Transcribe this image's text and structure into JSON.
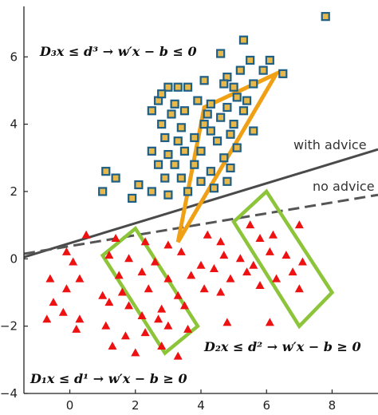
{
  "chart_data": {
    "type": "scatter",
    "title": "",
    "xlabel": "",
    "ylabel": "",
    "xlim": [
      -1.4,
      9.4
    ],
    "ylim": [
      -4,
      7.5
    ],
    "xticks": [
      0,
      2,
      4,
      6,
      8
    ],
    "yticks": [
      -4,
      -2,
      0,
      2,
      4,
      6
    ],
    "grid": false,
    "colors": {
      "squares_fill": "#e8b84a",
      "squares_edge": "#1d5f86",
      "triangles": "#ee1111",
      "with_advice_line": "#4a4a4a",
      "no_advice_line": "#555555",
      "knowledge_region_triangle": "#f0a014",
      "knowledge_region_boxes": "#8cc43a"
    },
    "series": [
      {
        "marker": "square",
        "points": [
          [
            7.8,
            7.2
          ],
          [
            5.3,
            6.5
          ],
          [
            4.6,
            6.1
          ],
          [
            5.9,
            5.6
          ],
          [
            6.1,
            5.9
          ],
          [
            6.5,
            5.5
          ],
          [
            5.5,
            5.9
          ],
          [
            5.2,
            5.6
          ],
          [
            4.8,
            5.4
          ],
          [
            5.6,
            5.2
          ],
          [
            5.0,
            5.1
          ],
          [
            4.7,
            5.2
          ],
          [
            3.0,
            5.1
          ],
          [
            3.3,
            5.1
          ],
          [
            3.6,
            5.1
          ],
          [
            3.2,
            4.6
          ],
          [
            2.7,
            4.7
          ],
          [
            3.9,
            4.7
          ],
          [
            4.3,
            4.6
          ],
          [
            5.1,
            4.8
          ],
          [
            5.4,
            4.7
          ],
          [
            4.2,
            4.3
          ],
          [
            4.8,
            4.5
          ],
          [
            2.5,
            4.4
          ],
          [
            3.1,
            4.3
          ],
          [
            3.5,
            4.4
          ],
          [
            4.1,
            4.0
          ],
          [
            4.6,
            4.2
          ],
          [
            5.0,
            4.0
          ],
          [
            5.3,
            4.4
          ],
          [
            2.8,
            4.0
          ],
          [
            3.4,
            3.9
          ],
          [
            4.3,
            3.8
          ],
          [
            4.9,
            3.7
          ],
          [
            5.6,
            3.8
          ],
          [
            2.9,
            3.6
          ],
          [
            3.3,
            3.5
          ],
          [
            3.8,
            3.6
          ],
          [
            4.5,
            3.5
          ],
          [
            5.1,
            3.3
          ],
          [
            2.5,
            3.2
          ],
          [
            3.0,
            3.1
          ],
          [
            3.5,
            3.2
          ],
          [
            4.0,
            3.2
          ],
          [
            4.7,
            3.0
          ],
          [
            2.7,
            2.8
          ],
          [
            3.2,
            2.8
          ],
          [
            3.8,
            2.8
          ],
          [
            4.3,
            2.6
          ],
          [
            4.9,
            2.7
          ],
          [
            2.9,
            2.4
          ],
          [
            3.4,
            2.4
          ],
          [
            4.0,
            2.3
          ],
          [
            1.1,
            2.6
          ],
          [
            1.4,
            2.4
          ],
          [
            2.1,
            2.2
          ],
          [
            1.9,
            1.8
          ],
          [
            1.0,
            2.0
          ],
          [
            2.5,
            2.0
          ],
          [
            3.0,
            1.9
          ],
          [
            4.4,
            2.1
          ],
          [
            4.8,
            2.3
          ],
          [
            3.6,
            2.0
          ],
          [
            2.8,
            4.9
          ],
          [
            4.1,
            5.3
          ]
        ]
      },
      {
        "marker": "triangle",
        "points": [
          [
            0.5,
            0.7
          ],
          [
            1.4,
            0.6
          ],
          [
            2.3,
            0.5
          ],
          [
            3.0,
            0.4
          ],
          [
            4.2,
            0.7
          ],
          [
            4.6,
            0.5
          ],
          [
            5.8,
            0.6
          ],
          [
            6.2,
            0.7
          ],
          [
            7.0,
            1.0
          ],
          [
            -0.1,
            0.2
          ],
          [
            0.1,
            -0.1
          ],
          [
            1.2,
            0.1
          ],
          [
            1.8,
            0.0
          ],
          [
            2.6,
            -0.1
          ],
          [
            3.4,
            0.2
          ],
          [
            4.0,
            -0.2
          ],
          [
            4.7,
            0.1
          ],
          [
            5.2,
            0.0
          ],
          [
            5.6,
            -0.2
          ],
          [
            6.1,
            0.2
          ],
          [
            6.6,
            0.1
          ],
          [
            7.1,
            -0.1
          ],
          [
            0.3,
            -0.6
          ],
          [
            1.5,
            -0.5
          ],
          [
            2.2,
            -0.4
          ],
          [
            3.0,
            -0.6
          ],
          [
            3.7,
            -0.5
          ],
          [
            4.4,
            -0.3
          ],
          [
            4.9,
            -0.6
          ],
          [
            5.4,
            -0.4
          ],
          [
            6.3,
            -0.6
          ],
          [
            6.8,
            -0.4
          ],
          [
            -0.6,
            -0.6
          ],
          [
            -0.1,
            -0.9
          ],
          [
            1.0,
            -1.1
          ],
          [
            1.6,
            -1.0
          ],
          [
            2.4,
            -0.9
          ],
          [
            3.3,
            -1.1
          ],
          [
            4.1,
            -0.9
          ],
          [
            4.6,
            -1.0
          ],
          [
            5.8,
            -0.8
          ],
          [
            7.0,
            -0.9
          ],
          [
            -0.5,
            -1.3
          ],
          [
            -0.2,
            -1.6
          ],
          [
            0.3,
            -1.8
          ],
          [
            1.2,
            -1.3
          ],
          [
            1.8,
            -1.4
          ],
          [
            2.2,
            -1.7
          ],
          [
            2.8,
            -1.5
          ],
          [
            3.5,
            -1.4
          ],
          [
            -0.7,
            -1.8
          ],
          [
            0.2,
            -2.1
          ],
          [
            1.1,
            -2.0
          ],
          [
            1.7,
            -2.3
          ],
          [
            2.3,
            -2.2
          ],
          [
            3.0,
            -2.0
          ],
          [
            3.6,
            -2.1
          ],
          [
            1.3,
            -2.6
          ],
          [
            2.0,
            -2.8
          ],
          [
            2.8,
            -2.6
          ],
          [
            3.3,
            -2.9
          ],
          [
            4.8,
            -1.9
          ],
          [
            6.1,
            -1.9
          ],
          [
            2.7,
            -1.8
          ],
          [
            5.5,
            1.0
          ]
        ]
      }
    ],
    "lines": [
      {
        "label": "with advice",
        "style": "solid",
        "points": [
          [
            -1.4,
            0.05
          ],
          [
            9.4,
            3.25
          ]
        ]
      },
      {
        "label": "no advice",
        "style": "dashed",
        "points": [
          [
            -1.4,
            0.15
          ],
          [
            9.4,
            1.9
          ]
        ]
      }
    ],
    "regions": [
      {
        "shape": "triangle",
        "vertices": [
          [
            3.3,
            0.5
          ],
          [
            4.1,
            4.5
          ],
          [
            6.3,
            5.5
          ]
        ]
      },
      {
        "shape": "box",
        "vertices": [
          [
            1.0,
            0.1
          ],
          [
            2.0,
            0.9
          ],
          [
            3.9,
            -2.0
          ],
          [
            2.9,
            -2.8
          ]
        ]
      },
      {
        "shape": "box",
        "vertices": [
          [
            5.0,
            1.1
          ],
          [
            6.0,
            2.0
          ],
          [
            8.0,
            -1.0
          ],
          [
            7.0,
            -2.0
          ]
        ]
      }
    ],
    "annotations": {
      "d3": "D₃x ≤ d³ → w′x − b ≤ 0",
      "d2": "D₂x ≤ d² → w′x − b ≥ 0",
      "d1": "D₁x ≤ d¹ → w′x − b ≥ 0",
      "with_advice": "with advice",
      "no_advice": "no advice"
    }
  }
}
